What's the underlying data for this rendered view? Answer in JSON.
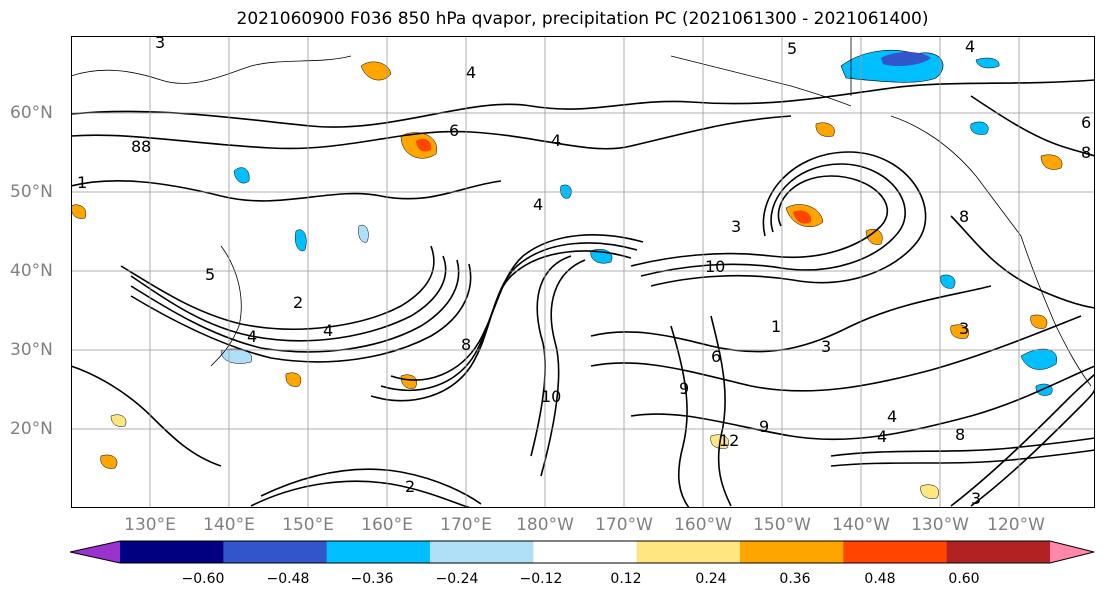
{
  "title": "2021060900 F036 850 hPa qvapor, precipitation PC (2021061300 - 2021061400)",
  "latitude_labels": [
    "60°N",
    "50°N",
    "40°N",
    "30°N",
    "20°N"
  ],
  "longitude_labels": [
    "130°E",
    "140°E",
    "150°E",
    "160°E",
    "170°E",
    "180°W",
    "170°W",
    "160°W",
    "150°W",
    "140°W",
    "130°W",
    "120°W"
  ],
  "contour_labels": [
    "3",
    "4",
    "5",
    "4",
    "6",
    "1",
    "8",
    "4",
    "4",
    "3",
    "10",
    "8",
    "4",
    "3",
    "1",
    "8",
    "9",
    "10",
    "6",
    "4",
    "3",
    "2",
    "5",
    "8",
    "4",
    "12",
    "2",
    "3",
    "4",
    "8",
    "6",
    "8",
    "9"
  ],
  "colorbar": {
    "tick_labels": [
      "−0.60",
      "−0.48",
      "−0.36",
      "−0.24",
      "−0.12",
      "0.12",
      "0.24",
      "0.36",
      "0.48",
      "0.60"
    ],
    "colors": [
      "#9933cc",
      "#000080",
      "#3355cc",
      "#00bfff",
      "#b0e0f8",
      "#ffffff",
      "#ffe680",
      "#ffa500",
      "#ff4500",
      "#b22222",
      "#ff88aa"
    ]
  },
  "colors": {
    "contour": "#000000",
    "grid": "#999999",
    "coastline": "#000000"
  }
}
